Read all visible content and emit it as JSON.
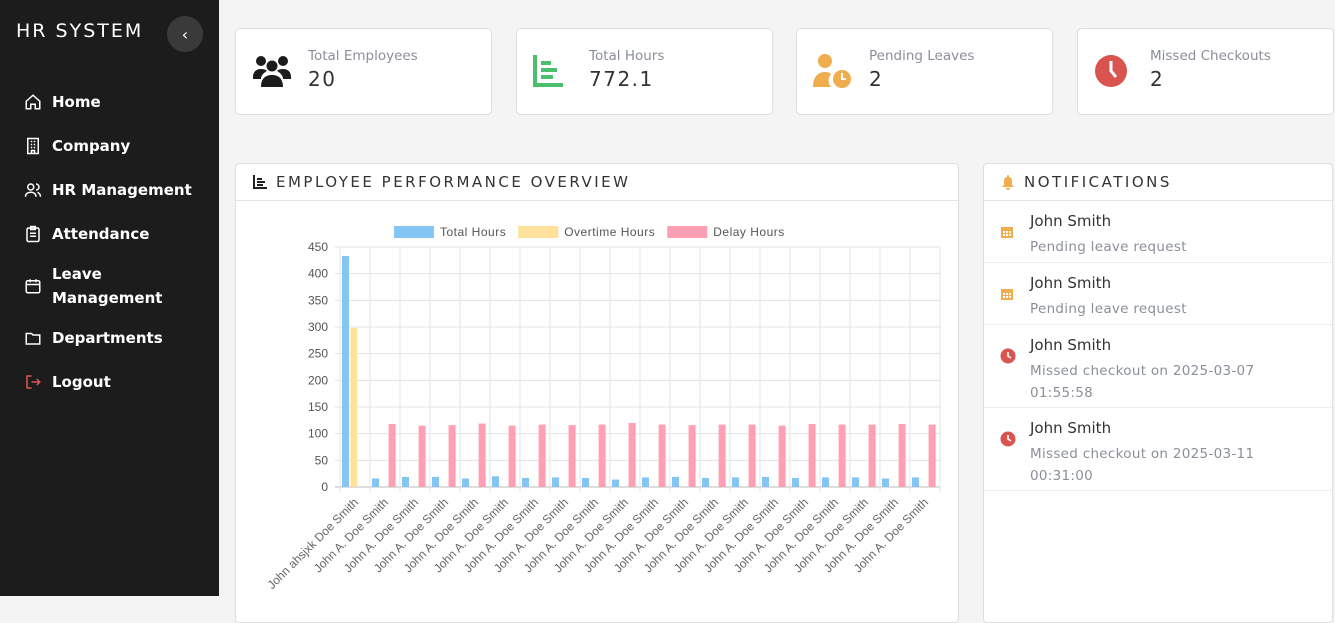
{
  "sidebar": {
    "brand": "HR SYSTEM",
    "collapse_icon": "chevron-left-icon",
    "items": [
      {
        "label": "Home",
        "icon": "home-icon"
      },
      {
        "label": "Company",
        "icon": "building-icon"
      },
      {
        "label": "HR Management",
        "icon": "users-icon"
      },
      {
        "label": "Attendance",
        "icon": "clipboard-icon"
      },
      {
        "label": "Leave Management",
        "icon": "calendar-icon"
      },
      {
        "label": "Departments",
        "icon": "folder-icon"
      },
      {
        "label": "Logout",
        "icon": "logout-icon"
      }
    ]
  },
  "stats": [
    {
      "label": "Total Employees",
      "value": "20",
      "icon": "users-icon",
      "color": "#1c1c1c"
    },
    {
      "label": "Total Hours",
      "value": "772.1",
      "icon": "chart-bar-icon",
      "color": "#4cbf6e"
    },
    {
      "label": "Pending Leaves",
      "value": "2",
      "icon": "user-clock-icon",
      "color": "#f0ad4e"
    },
    {
      "label": "Missed Checkouts",
      "value": "2",
      "icon": "clock-icon",
      "color": "#d9534f"
    }
  ],
  "performance": {
    "title": "EMPLOYEE PERFORMANCE OVERVIEW"
  },
  "chart_data": {
    "type": "bar",
    "categories": [
      "John ahsjxk Doe Smith",
      "John A. Doe Smith",
      "John A. Doe Smith",
      "John A. Doe Smith",
      "John A. Doe Smith",
      "John A. Doe Smith",
      "John A. Doe Smith",
      "John A. Doe Smith",
      "John A. Doe Smith",
      "John A. Doe Smith",
      "John A. Doe Smith",
      "John A. Doe Smith",
      "John A. Doe Smith",
      "John A. Doe Smith",
      "John A. Doe Smith",
      "John A. Doe Smith",
      "John A. Doe Smith",
      "John A. Doe Smith",
      "John A. Doe Smith",
      "John A. Doe Smith"
    ],
    "series": [
      {
        "name": "Total Hours",
        "color": "#84c5f4",
        "values": [
          433,
          16,
          19,
          19,
          16,
          20,
          17,
          18,
          17,
          14,
          18,
          19,
          17,
          18,
          19,
          17,
          18,
          18,
          16,
          18
        ]
      },
      {
        "name": "Overtime Hours",
        "color": "#ffe09c",
        "values": [
          298,
          0,
          0,
          0,
          0,
          0,
          0,
          0,
          0,
          0,
          0,
          0,
          0,
          0,
          0,
          0,
          0,
          0,
          0,
          0
        ]
      },
      {
        "name": "Delay Hours",
        "color": "#ff9fb4",
        "values": [
          0,
          118,
          115,
          116,
          119,
          115,
          117,
          116,
          117,
          120,
          117,
          116,
          117,
          117,
          115,
          118,
          117,
          117,
          118,
          117
        ]
      }
    ],
    "ylim": [
      0,
      450
    ],
    "yticks": [
      "0",
      "50",
      "100",
      "150",
      "200",
      "250",
      "300",
      "350",
      "400",
      "450"
    ],
    "grid": true,
    "legend": "top"
  },
  "notifications": {
    "title": "NOTIFICATIONS",
    "items": [
      {
        "name": "John Smith",
        "text": "Pending leave request",
        "icon": "calendar-icon",
        "color": "#f0ad4e"
      },
      {
        "name": "John Smith",
        "text": "Pending leave request",
        "icon": "calendar-icon",
        "color": "#f0ad4e"
      },
      {
        "name": "John Smith",
        "text": "Missed checkout on 2025-03-07 01:55:58",
        "icon": "clock-icon",
        "color": "#d9534f"
      },
      {
        "name": "John Smith",
        "text": "Missed checkout on 2025-03-11 00:31:00",
        "icon": "clock-icon",
        "color": "#d9534f"
      }
    ]
  }
}
